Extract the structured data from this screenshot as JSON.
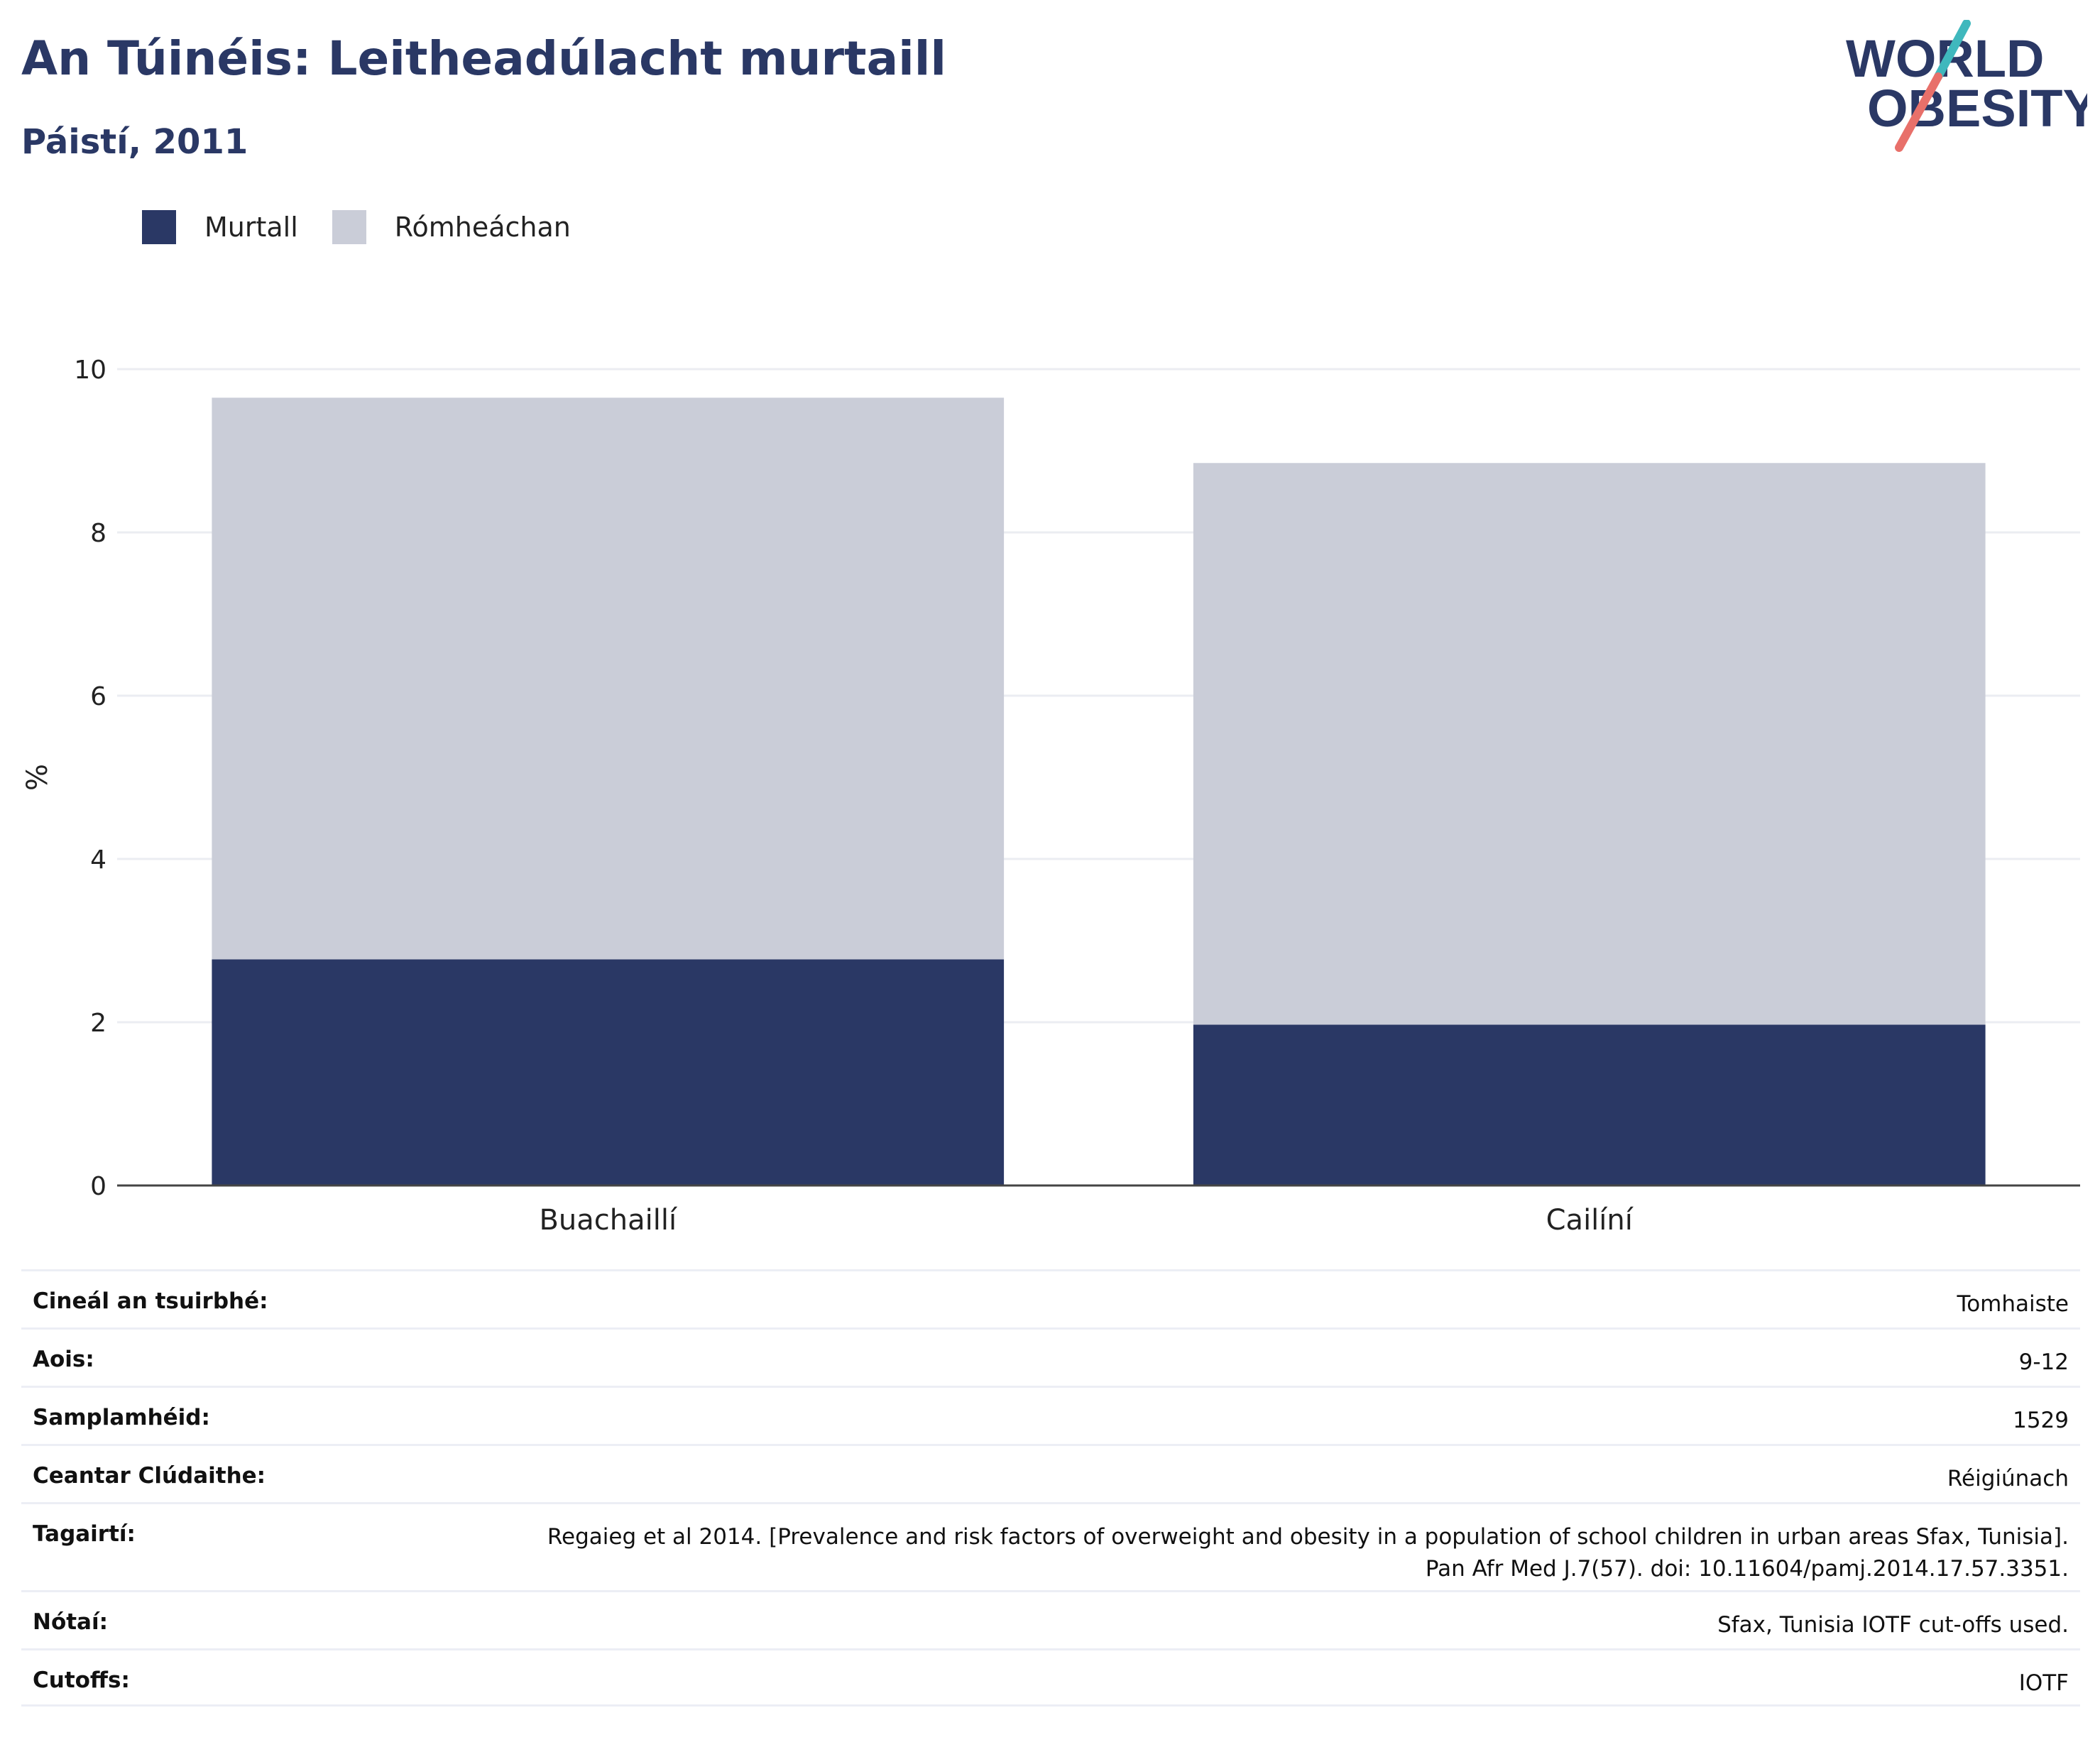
{
  "header": {
    "title": "An Túinéis: Leitheadúlacht murtaill",
    "subtitle": "Páistí, 2011"
  },
  "logo": {
    "line1": "WORLD",
    "line2": "OBESITY",
    "colors": {
      "text": "#2a3865",
      "slash_top": "#3fb8bd",
      "slash_bottom": "#e8706a"
    }
  },
  "chart_data": {
    "type": "bar",
    "stacked": true,
    "categories": [
      "Buachaillí",
      "Cailíní"
    ],
    "series": [
      {
        "name": "Murtall",
        "color": "#2a3865",
        "values": [
          2.77,
          1.97
        ]
      },
      {
        "name": "Rómheáchan",
        "color": "#cacdd8",
        "values": [
          6.88,
          6.88
        ]
      }
    ],
    "ylabel": "%",
    "ylim": [
      0,
      10
    ],
    "yticks": [
      0,
      2,
      4,
      6,
      8,
      10
    ],
    "grid": true,
    "legend_position": "top-left"
  },
  "info": {
    "rows": [
      {
        "label": "Cineál an tsuirbhé:",
        "value": "Tomhaiste"
      },
      {
        "label": "Aois:",
        "value": "9-12"
      },
      {
        "label": "Samplamhéid:",
        "value": "1529"
      },
      {
        "label": "Ceantar Clúdaithe:",
        "value": "Réigiúnach"
      },
      {
        "label": "Tagairtí:",
        "value": "Regaieg et al 2014. [Prevalence and risk factors of overweight and obesity in a population of school children in urban areas Sfax, Tunisia]. Pan Afr Med J.7(57). doi: 10.11604/pamj.2014.17.57.3351."
      },
      {
        "label": "Nótaí:",
        "value": "Sfax, Tunisia IOTF cut-offs used."
      },
      {
        "label": "Cutoffs:",
        "value": "IOTF"
      }
    ]
  }
}
